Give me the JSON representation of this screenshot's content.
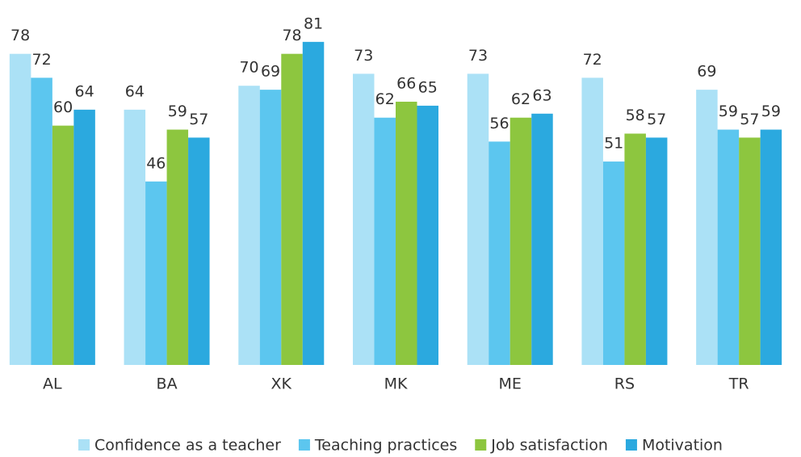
{
  "chart_data": {
    "type": "bar",
    "categories": [
      "AL",
      "BA",
      "XK",
      "MK",
      "ME",
      "RS",
      "TR"
    ],
    "series": [
      {
        "name": "Confidence as a teacher",
        "color": "#abe1f6",
        "values": [
          78,
          64,
          70,
          73,
          73,
          72,
          69
        ]
      },
      {
        "name": "Teaching practices",
        "color": "#5cc6ef",
        "values": [
          72,
          46,
          69,
          62,
          56,
          51,
          59
        ]
      },
      {
        "name": "Job satisfaction",
        "color": "#8dc63f",
        "values": [
          60,
          59,
          78,
          66,
          62,
          58,
          57
        ]
      },
      {
        "name": "Motivation",
        "color": "#2ba9df",
        "values": [
          64,
          57,
          81,
          65,
          63,
          57,
          59
        ]
      }
    ],
    "legend": "bottom"
  }
}
